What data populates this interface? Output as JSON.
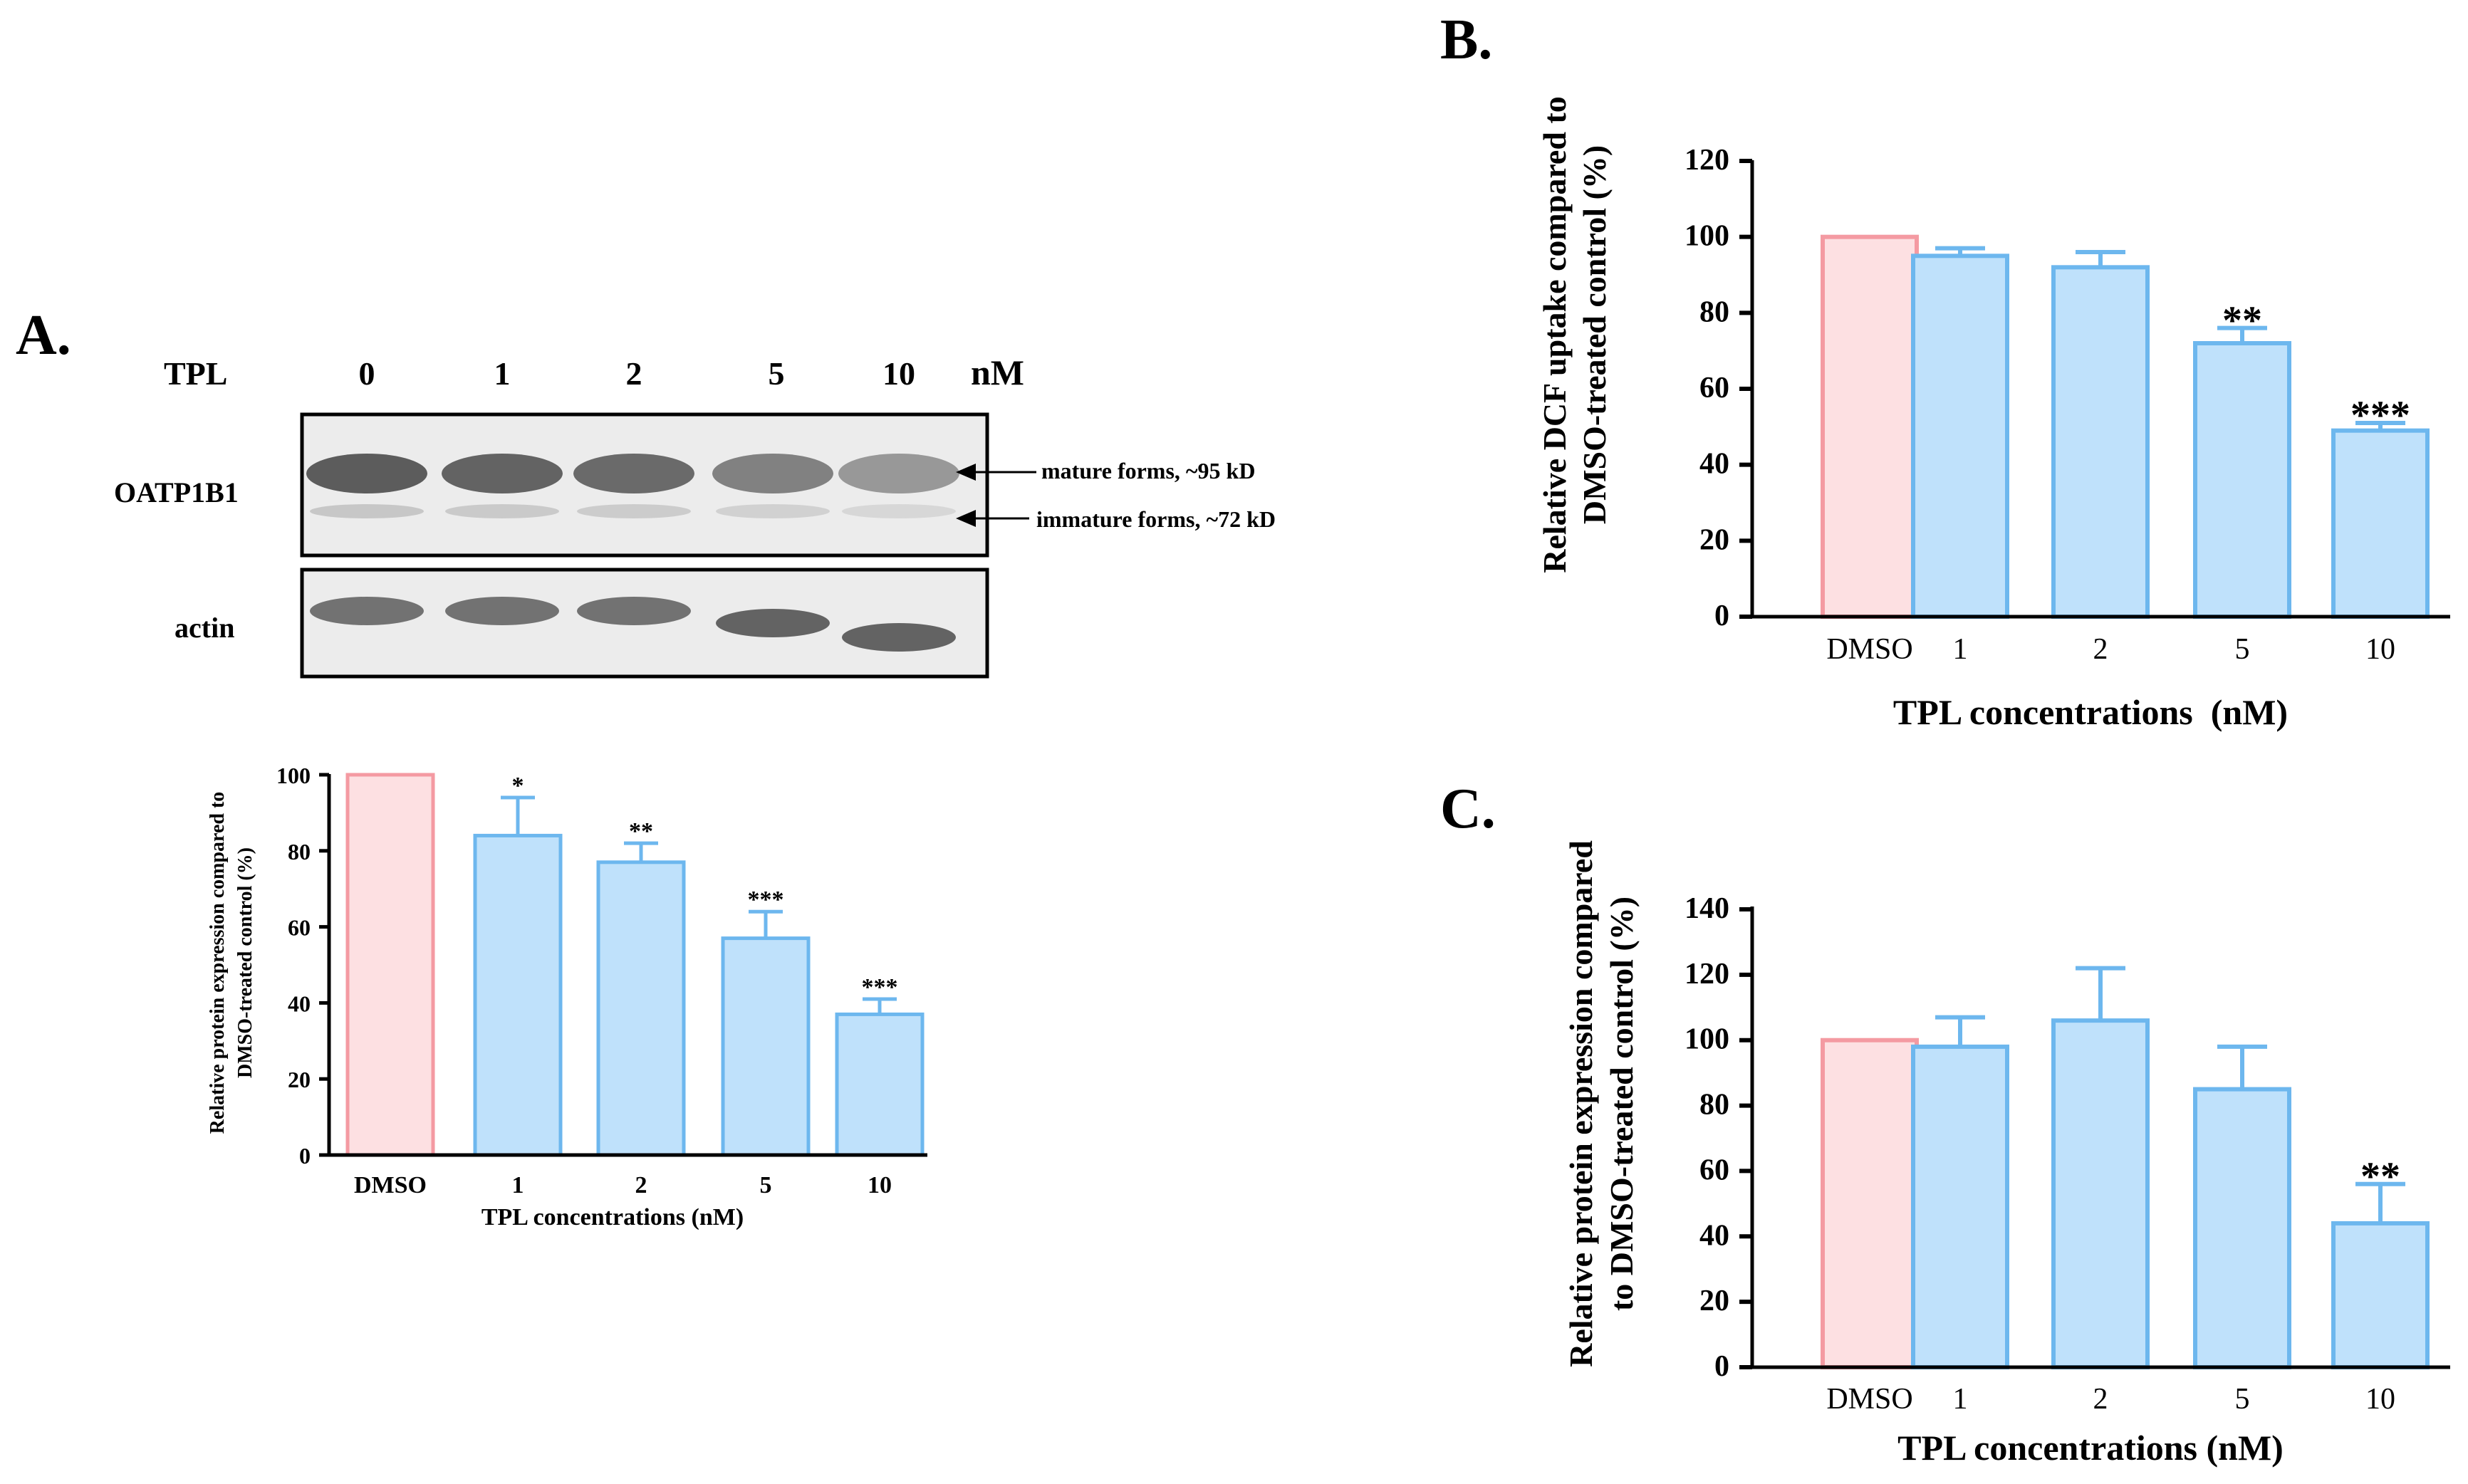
{
  "colors": {
    "control_fill": "#fde0e2",
    "control_stroke": "#f49aa2",
    "treated_fill": "#bfe1fb",
    "treated_stroke": "#6db7ee",
    "axis": "#000000",
    "blot_background": "#ececec",
    "blot_band": "#545454"
  },
  "panel_a": {
    "label": "A.",
    "blot": {
      "treatment_label": "TPL",
      "lane_labels": [
        "0",
        "1",
        "2",
        "5",
        "10"
      ],
      "unit_label": "nM",
      "rows": [
        {
          "name": "OATP1B1",
          "band_intensity": [
            0.95,
            0.9,
            0.85,
            0.7,
            0.55
          ]
        },
        {
          "name": "actin",
          "band_intensity": [
            0.8,
            0.8,
            0.8,
            0.9,
            0.9
          ]
        }
      ],
      "annotations": [
        "mature forms, ~95 kD",
        "immature forms, ~72 kD"
      ]
    }
  },
  "chart_data": [
    {
      "id": "A",
      "type": "bar",
      "title": "",
      "categories": [
        "DMSO",
        "1",
        "2",
        "5",
        "10"
      ],
      "values": [
        100,
        84,
        77,
        57,
        37
      ],
      "error": [
        0,
        10,
        5,
        7,
        4
      ],
      "significance": [
        "",
        "*",
        "**",
        "***",
        "***"
      ],
      "xlabel": "TPL concentrations (nM)",
      "ylabel_lines": [
        "Relative protein expression compared to",
        "DMSO-treated control (%)"
      ],
      "ylim": [
        0,
        100
      ],
      "yticks": [
        "0",
        "20",
        "40",
        "60",
        "80",
        "100"
      ],
      "grid": false
    },
    {
      "id": "B",
      "panel_label": "B.",
      "type": "bar",
      "title": "",
      "categories": [
        "DMSO",
        "1",
        "2",
        "5",
        "10"
      ],
      "values": [
        100,
        95,
        92,
        72,
        49
      ],
      "error": [
        0,
        2,
        4,
        4,
        2
      ],
      "significance": [
        "",
        "",
        "",
        "**",
        "***"
      ],
      "xlabel": "TPL concentrations  (nM)",
      "ylabel_lines": [
        "Relative DCF uptake compared to",
        "DMSO-treated control (%)"
      ],
      "ylim": [
        0,
        120
      ],
      "yticks": [
        "0",
        "20",
        "40",
        "60",
        "80",
        "100",
        "120"
      ],
      "grid": false
    },
    {
      "id": "C",
      "panel_label": "C.",
      "type": "bar",
      "title": "",
      "categories": [
        "DMSO",
        "1",
        "2",
        "5",
        "10"
      ],
      "values": [
        100,
        98,
        106,
        85,
        44
      ],
      "error": [
        0,
        9,
        16,
        13,
        12
      ],
      "significance": [
        "",
        "",
        "",
        "",
        "**"
      ],
      "xlabel": "TPL concentrations (nM)",
      "ylabel_lines": [
        "Relative protein expression compared",
        "to DMSO-treated control (%)"
      ],
      "ylim": [
        0,
        140
      ],
      "yticks": [
        "0",
        "20",
        "40",
        "60",
        "80",
        "100",
        "120",
        "140"
      ],
      "grid": false
    }
  ]
}
